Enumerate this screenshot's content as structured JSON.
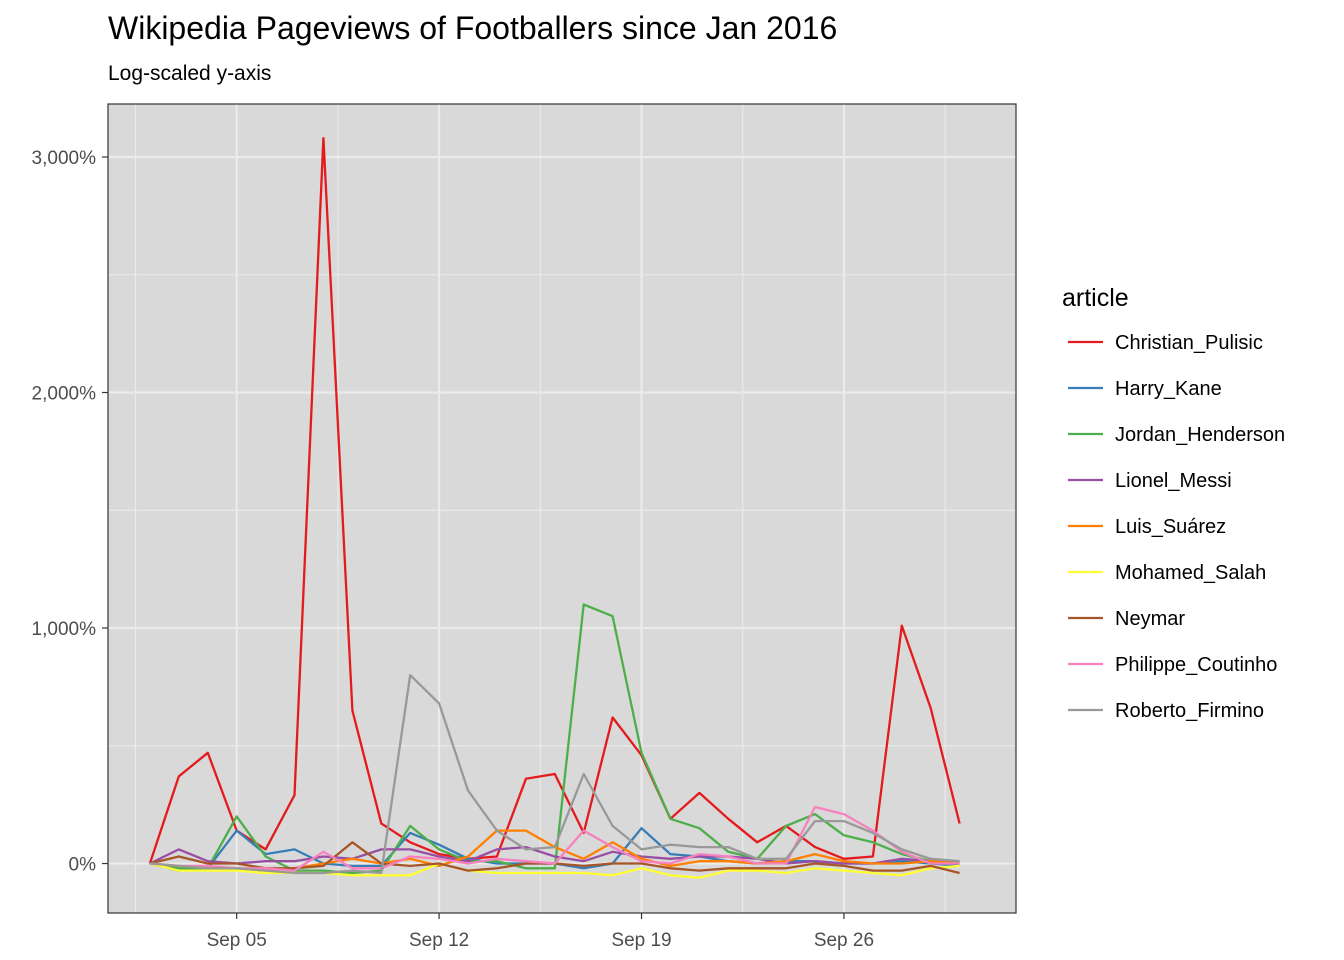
{
  "chart_data": {
    "type": "line",
    "title": "Wikipedia Pageviews of Footballers since Jan 2016",
    "subtitle": "Log-scaled y-axis",
    "xlabel": "",
    "ylabel": "",
    "x": [
      "2018-09-02",
      "2018-09-03",
      "2018-09-04",
      "2018-09-05",
      "2018-09-06",
      "2018-09-07",
      "2018-09-08",
      "2018-09-09",
      "2018-09-10",
      "2018-09-11",
      "2018-09-12",
      "2018-09-13",
      "2018-09-14",
      "2018-09-15",
      "2018-09-16",
      "2018-09-17",
      "2018-09-18",
      "2018-09-19",
      "2018-09-20",
      "2018-09-21",
      "2018-09-22",
      "2018-09-23",
      "2018-09-24",
      "2018-09-25",
      "2018-09-26",
      "2018-09-27",
      "2018-09-28",
      "2018-09-29",
      "2018-09-30"
    ],
    "x_tick_labels": [
      "Sep 05",
      "Sep 12",
      "Sep 19",
      "Sep 26"
    ],
    "x_tick_positions": [
      3,
      10,
      17,
      24
    ],
    "y_ticks": [
      0,
      1000,
      2000,
      3000
    ],
    "y_tick_labels": [
      "0%",
      "1,000%",
      "2,000%",
      "3,000%"
    ],
    "ylim": [
      -210,
      3225
    ],
    "xlim": [
      -1.45,
      29.95
    ],
    "grid": true,
    "legend_title": "article",
    "legend_position": "right",
    "series": [
      {
        "name": "Christian_Pulisic",
        "color": "#E41A1C",
        "values": [
          0,
          370,
          470,
          140,
          60,
          290,
          3080,
          650,
          170,
          90,
          40,
          20,
          30,
          360,
          380,
          130,
          620,
          460,
          190,
          300,
          190,
          90,
          160,
          70,
          20,
          30,
          1010,
          660,
          170
        ]
      },
      {
        "name": "Harry_Kane",
        "color": "#377EB8",
        "values": [
          0,
          -30,
          -20,
          140,
          40,
          60,
          0,
          -10,
          -10,
          130,
          80,
          20,
          0,
          0,
          0,
          -20,
          0,
          150,
          40,
          30,
          10,
          0,
          10,
          10,
          0,
          0,
          10,
          0,
          -10
        ]
      },
      {
        "name": "Jordan_Henderson",
        "color": "#4DAF4A",
        "values": [
          0,
          -20,
          -20,
          200,
          30,
          -30,
          -30,
          -40,
          -30,
          160,
          60,
          10,
          10,
          -20,
          -20,
          1100,
          1050,
          470,
          190,
          150,
          50,
          20,
          160,
          210,
          120,
          90,
          40,
          10,
          0
        ]
      },
      {
        "name": "Lionel_Messi",
        "color": "#984EA3",
        "values": [
          0,
          60,
          10,
          0,
          10,
          10,
          30,
          20,
          60,
          60,
          30,
          10,
          60,
          70,
          30,
          10,
          50,
          30,
          20,
          30,
          30,
          20,
          0,
          10,
          0,
          0,
          20,
          10,
          10
        ]
      },
      {
        "name": "Luis_Suárez",
        "color": "#FF7F00",
        "values": [
          0,
          -10,
          -20,
          -20,
          -30,
          -20,
          0,
          20,
          0,
          20,
          -10,
          30,
          140,
          140,
          70,
          20,
          90,
          20,
          -10,
          10,
          10,
          0,
          10,
          40,
          10,
          0,
          0,
          10,
          0
        ]
      },
      {
        "name": "Mohamed_Salah",
        "color": "#FFFF33",
        "values": [
          0,
          -30,
          -30,
          -30,
          -40,
          -40,
          -40,
          -50,
          -50,
          -50,
          0,
          -30,
          -40,
          -40,
          -40,
          -40,
          -50,
          -20,
          -50,
          -60,
          -30,
          -30,
          -40,
          -20,
          -30,
          -40,
          -50,
          -20,
          -10
        ]
      },
      {
        "name": "Neymar",
        "color": "#A65628",
        "values": [
          0,
          30,
          0,
          0,
          -20,
          -20,
          -10,
          90,
          0,
          -10,
          0,
          -30,
          -20,
          0,
          0,
          -10,
          0,
          0,
          -20,
          -30,
          -20,
          -20,
          -20,
          0,
          -10,
          -30,
          -30,
          -10,
          -40
        ]
      },
      {
        "name": "Philippe_Coutinho",
        "color": "#F781BF",
        "values": [
          0,
          -10,
          -10,
          -20,
          -20,
          -30,
          50,
          -20,
          -20,
          30,
          20,
          0,
          20,
          10,
          0,
          140,
          70,
          10,
          0,
          40,
          30,
          0,
          0,
          240,
          210,
          140,
          50,
          0,
          0
        ]
      },
      {
        "name": "Roberto_Firmino",
        "color": "#999999",
        "values": [
          0,
          -10,
          -20,
          -20,
          -30,
          -40,
          -40,
          -30,
          -40,
          800,
          680,
          310,
          140,
          60,
          70,
          380,
          160,
          60,
          80,
          70,
          70,
          20,
          20,
          180,
          180,
          130,
          60,
          20,
          10
        ]
      }
    ]
  }
}
